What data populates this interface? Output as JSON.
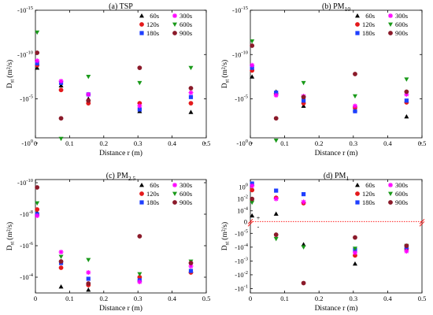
{
  "legend_labels": [
    "60s",
    "120s",
    "180s",
    "300s",
    "600s",
    "900s"
  ],
  "colors": {
    "60s": "#000000",
    "120s": "#e41a1c",
    "180s": "#1f3fff",
    "300s": "#ff00ff",
    "600s": "#1a9a1a",
    "900s": "#8b1a2a",
    "sign_line": "#ff0000"
  },
  "markers": {
    "60s": "triangle-up",
    "120s": "circle",
    "180s": "square",
    "300s": "star",
    "600s": "triangle-down",
    "900s": "circle"
  },
  "chart_data": [
    {
      "id": "a",
      "type": "scatter",
      "title_main": "(a) TSP",
      "title_sub": "",
      "xlabel": "Distance r (m)",
      "ylabel_main": "D",
      "ylabel_sub": "st",
      "ylabel_unit": "(m²/s)",
      "xlim": [
        0,
        0.5
      ],
      "xticks": [
        "0",
        "0.1",
        "0.2",
        "0.3",
        "0.4",
        "0.5"
      ],
      "yaxis_kind": "log",
      "ylim_exp": [
        -0.6,
        -15
      ],
      "yticks": [
        {
          "v": -15,
          "base": "-10",
          "exp": "-15"
        },
        {
          "v": -10,
          "base": "-10",
          "exp": "-10"
        },
        {
          "v": -5,
          "base": "-10",
          "exp": "-5"
        },
        {
          "v": 0,
          "base": "-10",
          "exp": "0"
        }
      ],
      "x": [
        0.005,
        0.075,
        0.155,
        0.305,
        0.455
      ],
      "series": [
        {
          "key": "60s",
          "values": [
            -8.5,
            -6.5,
            -5.0,
            -3.6,
            -3.5
          ]
        },
        {
          "key": "120s",
          "values": [
            -8.8,
            -6.0,
            -4.5,
            -4.5,
            -4.5
          ]
        },
        {
          "key": "180s",
          "values": [
            -9.0,
            -6.8,
            -5.5,
            -3.8,
            -5.2
          ]
        },
        {
          "key": "300s",
          "values": [
            -9.3,
            -7.0,
            -5.5,
            -4.2,
            -5.7
          ]
        },
        {
          "key": "600s",
          "values": [
            -12.5,
            -0.5,
            -7.5,
            -6.8,
            -8.5
          ]
        },
        {
          "key": "900s",
          "values": [
            -10.2,
            -2.8,
            -4.8,
            -8.5,
            -6.2
          ]
        }
      ]
    },
    {
      "id": "b",
      "type": "scatter",
      "title_main": "(b) PM",
      "title_sub": "10",
      "xlabel": "Distance r (m)",
      "ylabel_main": "D",
      "ylabel_sub": "st",
      "ylabel_unit": "(m²/s)",
      "xlim": [
        0,
        0.5
      ],
      "xticks": [
        "0",
        "0.1",
        "0.2",
        "0.3",
        "0.4",
        "0.5"
      ],
      "yaxis_kind": "log",
      "ylim_exp": [
        -0.6,
        -15
      ],
      "yticks": [
        {
          "v": -15,
          "base": "-10",
          "exp": "-15"
        },
        {
          "v": -10,
          "base": "-10",
          "exp": "-10"
        },
        {
          "v": -5,
          "base": "-10",
          "exp": "-5"
        },
        {
          "v": 0,
          "base": "-10",
          "exp": "0"
        }
      ],
      "x": [
        0.005,
        0.075,
        0.155,
        0.305,
        0.455
      ],
      "series": [
        {
          "key": "60s",
          "values": [
            -7.5,
            -5.8,
            -4.2,
            -3.8,
            -3.0
          ]
        },
        {
          "key": "120s",
          "values": [
            -8.2,
            -5.6,
            -4.5,
            -4.0,
            -4.6
          ]
        },
        {
          "key": "180s",
          "values": [
            -8.5,
            -5.7,
            -4.8,
            -3.6,
            -4.8
          ]
        },
        {
          "key": "300s",
          "values": [
            -8.8,
            -5.4,
            -5.3,
            -4.2,
            -5.5
          ]
        },
        {
          "key": "600s",
          "values": [
            -11.5,
            -0.3,
            -6.8,
            -5.3,
            -7.2
          ]
        },
        {
          "key": "900s",
          "values": [
            -11.0,
            -2.8,
            -5.2,
            -7.8,
            -5.8
          ]
        }
      ]
    },
    {
      "id": "c",
      "type": "scatter",
      "title_main": "(c) PM",
      "title_sub": "2.5",
      "xlabel": "Distance r (m)",
      "ylabel_main": "D",
      "ylabel_sub": "st",
      "ylabel_unit": "(m²/s)",
      "xlim": [
        0,
        0.5
      ],
      "xticks": [
        "0",
        "0.1",
        "0.2",
        "0.3",
        "0.4",
        "0.5"
      ],
      "yaxis_kind": "log",
      "ylim_exp": [
        -3.0,
        -10.2
      ],
      "yticks": [
        {
          "v": -10,
          "base": "-10",
          "exp": "-10"
        },
        {
          "v": -8,
          "base": "-10",
          "exp": "-8"
        },
        {
          "v": -6,
          "base": "-10",
          "exp": "-6"
        },
        {
          "v": -4,
          "base": "-10",
          "exp": "-4"
        }
      ],
      "x": [
        0.005,
        0.075,
        0.155,
        0.305,
        0.455
      ],
      "series": [
        {
          "key": "60s",
          "values": [
            -8.1,
            -3.4,
            -3.2,
            -3.9,
            -4.4
          ]
        },
        {
          "key": "120s",
          "values": [
            -8.3,
            -4.6,
            -3.5,
            -4.0,
            -4.3
          ]
        },
        {
          "key": "180s",
          "values": [
            -8.0,
            -4.9,
            -3.9,
            -3.8,
            -4.4
          ]
        },
        {
          "key": "300s",
          "values": [
            -7.9,
            -5.6,
            -4.3,
            -3.7,
            -4.7
          ]
        },
        {
          "key": "600s",
          "values": [
            -8.7,
            -5.3,
            -5.1,
            -4.2,
            -5.0
          ]
        },
        {
          "key": "900s",
          "values": [
            -9.7,
            -5.0,
            -3.6,
            -6.6,
            -4.9
          ]
        }
      ]
    },
    {
      "id": "d",
      "type": "scatter",
      "title_main": "(d) PM",
      "title_sub": "1",
      "xlabel": "Distance r (m)",
      "ylabel_main": "D",
      "ylabel_sub": "st",
      "ylabel_unit": "(m²/s)",
      "xlim": [
        0,
        0.5
      ],
      "xticks": [
        "0",
        "0.1",
        "0.2",
        "0.3",
        "0.4",
        "0.5"
      ],
      "yaxis_kind": "symlog",
      "zero_label": "0",
      "sign_plus": "+",
      "sign_minus": "-",
      "pos_ticks": [
        {
          "v": 0,
          "base": "10",
          "exp": "0"
        },
        {
          "v": -2,
          "base": "10",
          "exp": "-2"
        },
        {
          "v": -4,
          "base": "10",
          "exp": "-4"
        }
      ],
      "neg_ticks": [
        {
          "v": -5,
          "base": "-10",
          "exp": "-5"
        },
        {
          "v": -4,
          "base": "-10",
          "exp": "-4"
        },
        {
          "v": -3,
          "base": "-10",
          "exp": "-3"
        },
        {
          "v": -2,
          "base": "-10",
          "exp": "-2"
        },
        {
          "v": -1,
          "base": "-10",
          "exp": "-1"
        }
      ],
      "x": [
        0.005,
        0.075,
        0.155,
        0.305,
        0.455
      ],
      "series": [
        {
          "key": "60s",
          "values": [
            {
              "s": 1,
              "e": -4.8
            },
            {
              "s": 1,
              "e": -4.5
            },
            {
              "s": -1,
              "e": -4.2
            },
            {
              "s": -1,
              "e": -2.8
            },
            {
              "s": -1,
              "e": -3.9
            }
          ]
        },
        {
          "key": "120s",
          "values": [
            {
              "s": 1,
              "e": -0.5
            },
            {
              "s": 1,
              "e": -1.8
            },
            {
              "s": 1,
              "e": -2.7
            },
            {
              "s": -1,
              "e": -3.4
            },
            {
              "s": -1,
              "e": -3.9
            }
          ]
        },
        {
          "key": "180s",
          "values": [
            {
              "s": 1,
              "e": 0.6
            },
            {
              "s": 1,
              "e": -0.6
            },
            {
              "s": 1,
              "e": -1.2
            },
            {
              "s": -1,
              "e": -3.8
            },
            {
              "s": -1,
              "e": -4.0
            }
          ]
        },
        {
          "key": "300s",
          "values": [
            {
              "s": 1,
              "e": 0.2
            },
            {
              "s": 1,
              "e": -2.0
            },
            {
              "s": 1,
              "e": -2.5
            },
            {
              "s": -1,
              "e": -3.6
            },
            {
              "s": -1,
              "e": -3.7
            }
          ]
        },
        {
          "key": "600s",
          "values": [
            {
              "s": 1,
              "e": -2.6
            },
            {
              "s": -1,
              "e": -4.6
            },
            {
              "s": -1,
              "e": -4.0
            },
            {
              "s": -1,
              "e": -3.9
            },
            {
              "s": -1,
              "e": -4.1
            }
          ]
        },
        {
          "key": "900s",
          "values": [
            {
              "s": 1,
              "e": -2.0
            },
            {
              "s": -1,
              "e": -4.9
            },
            {
              "s": -1,
              "e": -1.4
            },
            {
              "s": -1,
              "e": -4.7
            },
            {
              "s": -1,
              "e": -4.1
            }
          ]
        }
      ]
    }
  ]
}
